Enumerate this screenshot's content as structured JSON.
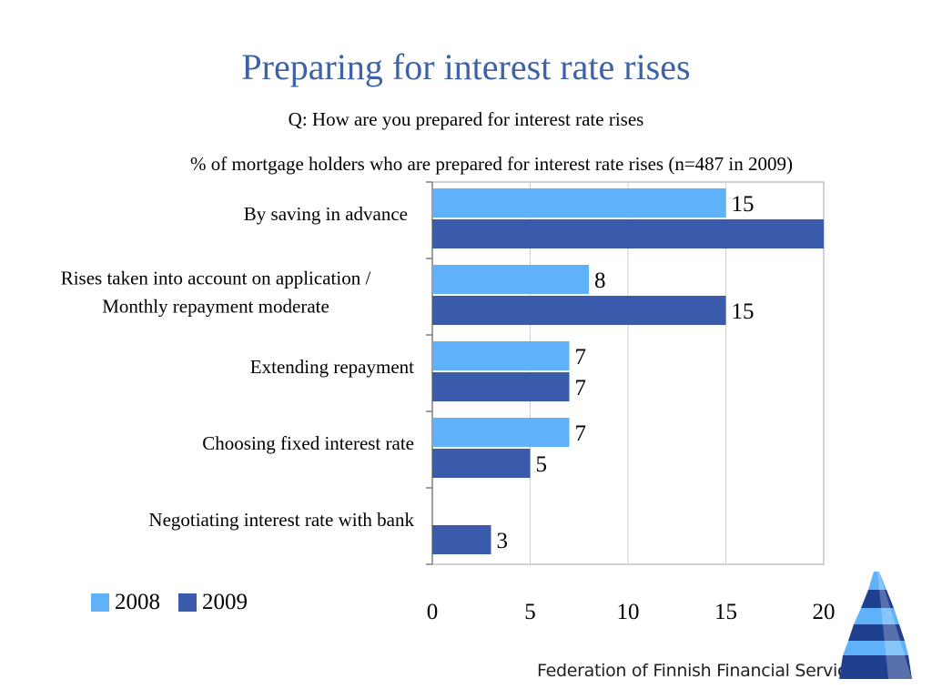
{
  "header": {
    "title": "Preparing for interest rate rises",
    "question": "Q: How are you prepared for interest rate rises",
    "subtitle": "% of mortgage holders who are prepared for interest rate rises (n=487 in 2009)"
  },
  "chart_data": {
    "type": "bar",
    "orientation": "horizontal",
    "categories": [
      [
        "By saving in advance"
      ],
      [
        "Rises taken into account on application /",
        "Monthly repayment moderate"
      ],
      [
        "Extending repayment"
      ],
      [
        "Choosing fixed interest rate"
      ],
      [
        "Negotiating interest rate with bank"
      ]
    ],
    "series": [
      {
        "name": "2008",
        "color": "#5fb2f8",
        "values": [
          15,
          8,
          7,
          7,
          null
        ]
      },
      {
        "name": "2009",
        "color": "#3a5bab",
        "values": [
          20,
          15,
          7,
          5,
          3
        ]
      }
    ],
    "data_labels": [
      [
        "15",
        "8",
        "7",
        "7",
        ""
      ],
      [
        "",
        "15",
        "7",
        "5",
        "3"
      ]
    ],
    "xlim": [
      0,
      20
    ],
    "xticks": [
      "0",
      "5",
      "10",
      "15",
      "20"
    ],
    "grid": true,
    "legend_position": "bottom-left"
  },
  "footer": {
    "organization": "Federation of Finnish Financial Services"
  }
}
